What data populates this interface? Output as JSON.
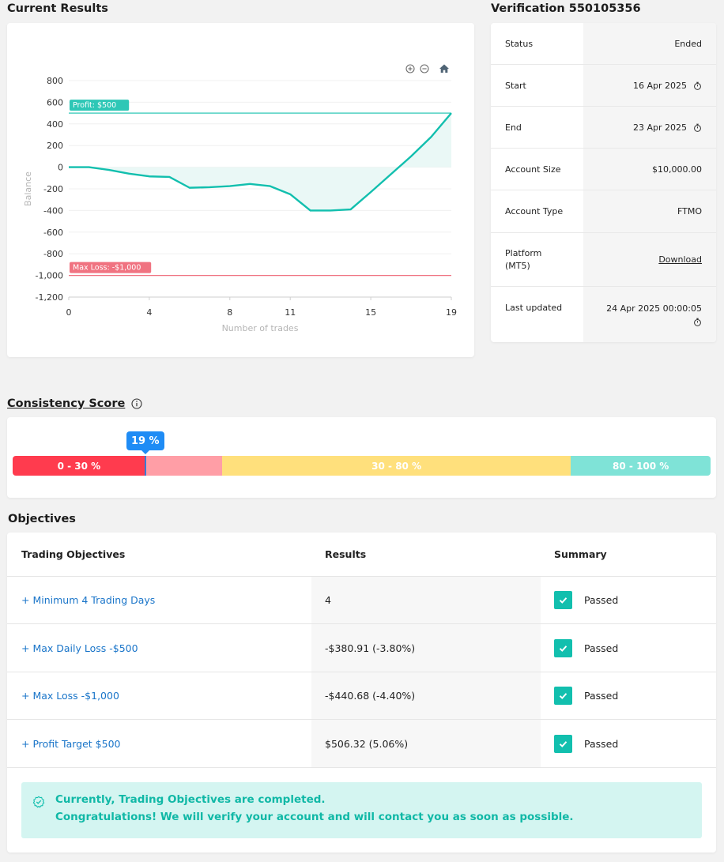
{
  "current_results": {
    "title": "Current Results"
  },
  "chart_data": {
    "type": "line",
    "title": "",
    "xlabel": "Number of trades",
    "ylabel": "Balance",
    "xlim": [
      0,
      19
    ],
    "ylim": [
      -1200,
      800
    ],
    "x_ticks": [
      "0",
      "4",
      "8",
      "11",
      "15",
      "19"
    ],
    "y_ticks": [
      "800",
      "600",
      "400",
      "200",
      "0",
      "-200",
      "-400",
      "-600",
      "-800",
      "-1,000",
      "-1,200"
    ],
    "series": [
      {
        "x": [
          0,
          1,
          2,
          3,
          4,
          5,
          6,
          7,
          8,
          9,
          10,
          11,
          12,
          13,
          14,
          15,
          16,
          17,
          18,
          19
        ],
        "values": [
          0,
          0,
          -25,
          -60,
          -85,
          -90,
          -190,
          -185,
          -175,
          -155,
          -175,
          -250,
          -400,
          -400,
          -390,
          -230,
          -65,
          100,
          280,
          500
        ]
      }
    ],
    "extra_point": {
      "x": 19,
      "y": 500
    },
    "reference_lines": [
      {
        "label": "Profit: $500",
        "value": 500,
        "color": "#2ec7b6"
      },
      {
        "label": "Max Loss: -$1,000",
        "value": -1000,
        "color": "#f07381"
      }
    ],
    "line_color": "#12bfae",
    "fill_color": "#eaf8f6",
    "grid": true
  },
  "verification": {
    "title": "Verification 550105356",
    "rows": [
      {
        "label": "Status",
        "value": "Ended"
      },
      {
        "label": "Start",
        "value": "16 Apr 2025"
      },
      {
        "label": "End",
        "value": "23 Apr 2025"
      },
      {
        "label": "Account Size",
        "value": "$10,000.00"
      },
      {
        "label": "Account Type",
        "value": "FTMO"
      },
      {
        "label": "Platform",
        "label2": "(MT5)",
        "value": "Download"
      },
      {
        "label": "Last updated",
        "value": "24 Apr 2025 00:00:05"
      }
    ]
  },
  "consistency": {
    "title": "Consistency Score",
    "score": "19 %",
    "score_value": 19,
    "segments": [
      {
        "label": "0 - 30 %",
        "from": 0,
        "to": 30,
        "color": "#ff3b4e"
      },
      {
        "label": "30 - 80 %",
        "from": 30,
        "to": 80,
        "color": "#ffe07c"
      },
      {
        "label": "80 - 100 %",
        "from": 80,
        "to": 100,
        "color": "#7fe3d7"
      }
    ],
    "badge_color": "#1f8cf5"
  },
  "objectives": {
    "title": "Objectives",
    "headers": [
      "Trading Objectives",
      "Results",
      "Summary"
    ],
    "rows": [
      {
        "name": "+ Minimum 4 Trading Days",
        "result": "4",
        "summary": "Passed"
      },
      {
        "name": "+ Max Daily Loss -$500",
        "result": "-$380.91 (-3.80%)",
        "summary": "Passed"
      },
      {
        "name": "+ Max Loss -$1,000",
        "result": "-$440.68 (-4.40%)",
        "summary": "Passed"
      },
      {
        "name": "+ Profit Target $500",
        "result": "$506.32 (5.06%)",
        "summary": "Passed"
      }
    ],
    "alert_line1": "Currently, Trading Objectives are completed.",
    "alert_line2": "Congratulations! We will verify your account and will contact you as soon as possible."
  }
}
